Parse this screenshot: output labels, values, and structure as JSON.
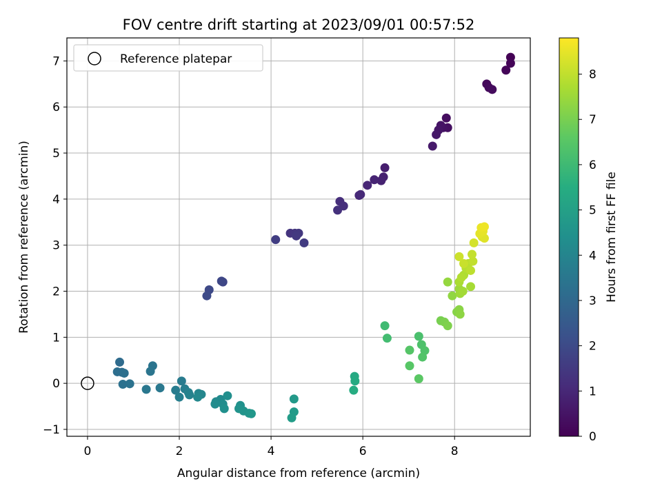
{
  "chart_data": {
    "type": "scatter",
    "title": "FOV centre drift starting at 2023/09/01 00:57:52",
    "xlabel": "Angular distance from reference (arcmin)",
    "ylabel": "Rotation from reference (arcmin)",
    "xlim": [
      -0.45,
      9.65
    ],
    "ylim": [
      -1.15,
      7.5
    ],
    "xticks": [
      0,
      2,
      4,
      6,
      8
    ],
    "yticks": [
      -1,
      0,
      1,
      2,
      3,
      4,
      5,
      6,
      7
    ],
    "grid": true,
    "colormap": "viridis",
    "colorbar": {
      "label": "Hours from first FF file",
      "range": [
        0,
        8.8
      ],
      "ticks": [
        0,
        1,
        2,
        3,
        4,
        5,
        6,
        7,
        8
      ]
    },
    "legend": {
      "position": "top-left",
      "entries": [
        "Reference platepar"
      ]
    },
    "reference_point": {
      "x": 0,
      "y": 0
    },
    "series": [
      {
        "points": [
          [
            9.22,
            7.08,
            0.03
          ],
          [
            9.22,
            6.95,
            0.08
          ],
          [
            9.12,
            6.8,
            0.12
          ],
          [
            8.7,
            6.5,
            0.17
          ],
          [
            8.75,
            6.42,
            0.22
          ],
          [
            8.82,
            6.38,
            0.27
          ],
          [
            7.82,
            5.76,
            0.33
          ],
          [
            7.85,
            5.55,
            0.38
          ],
          [
            7.75,
            5.55,
            0.43
          ],
          [
            7.7,
            5.6,
            0.48
          ],
          [
            7.65,
            5.5,
            0.53
          ],
          [
            7.6,
            5.4,
            0.58
          ],
          [
            7.52,
            5.15,
            0.63
          ],
          [
            6.48,
            4.68,
            0.75
          ],
          [
            6.45,
            4.48,
            0.8
          ],
          [
            6.4,
            4.4,
            0.85
          ],
          [
            6.25,
            4.42,
            0.9
          ],
          [
            6.1,
            4.3,
            0.95
          ],
          [
            5.92,
            4.08,
            1.0
          ],
          [
            5.95,
            4.1,
            1.05
          ],
          [
            5.5,
            3.95,
            1.15
          ],
          [
            5.58,
            3.85,
            1.2
          ],
          [
            5.45,
            3.76,
            1.25
          ],
          [
            4.42,
            3.26,
            1.35
          ],
          [
            4.52,
            3.26,
            1.4
          ],
          [
            4.6,
            3.26,
            1.45
          ],
          [
            4.55,
            3.2,
            1.5
          ],
          [
            4.72,
            3.05,
            1.55
          ],
          [
            4.1,
            3.12,
            1.62
          ],
          [
            2.95,
            2.2,
            1.85
          ],
          [
            2.92,
            2.22,
            1.9
          ],
          [
            2.65,
            2.03,
            1.95
          ],
          [
            2.6,
            1.9,
            2.0
          ],
          [
            0.7,
            0.46,
            3.1
          ],
          [
            0.75,
            0.24,
            3.15
          ],
          [
            0.65,
            0.25,
            3.2
          ],
          [
            0.8,
            0.22,
            3.25
          ],
          [
            0.77,
            -0.02,
            3.3
          ],
          [
            0.92,
            -0.01,
            3.35
          ],
          [
            1.42,
            0.38,
            3.4
          ],
          [
            1.37,
            0.26,
            3.45
          ],
          [
            1.28,
            -0.13,
            3.5
          ],
          [
            1.58,
            -0.1,
            3.55
          ],
          [
            2.05,
            0.05,
            3.65
          ],
          [
            1.92,
            -0.15,
            3.7
          ],
          [
            2.12,
            -0.12,
            3.75
          ],
          [
            2.0,
            -0.3,
            3.8
          ],
          [
            2.2,
            -0.2,
            3.85
          ],
          [
            2.22,
            -0.25,
            3.9
          ],
          [
            2.42,
            -0.22,
            4.0
          ],
          [
            2.48,
            -0.24,
            4.05
          ],
          [
            2.4,
            -0.3,
            4.1
          ],
          [
            2.8,
            -0.4,
            4.15
          ],
          [
            2.9,
            -0.35,
            4.2
          ],
          [
            2.78,
            -0.45,
            4.25
          ],
          [
            2.95,
            -0.45,
            4.3
          ],
          [
            3.05,
            -0.27,
            4.35
          ],
          [
            2.98,
            -0.55,
            4.4
          ],
          [
            3.33,
            -0.48,
            4.45
          ],
          [
            3.3,
            -0.55,
            4.5
          ],
          [
            3.4,
            -0.6,
            4.55
          ],
          [
            3.52,
            -0.65,
            4.6
          ],
          [
            3.57,
            -0.66,
            4.65
          ],
          [
            4.5,
            -0.34,
            4.75
          ],
          [
            4.5,
            -0.62,
            4.8
          ],
          [
            4.45,
            -0.75,
            4.85
          ],
          [
            5.82,
            0.15,
            5.35
          ],
          [
            5.83,
            0.05,
            5.4
          ],
          [
            5.8,
            -0.15,
            5.45
          ],
          [
            6.48,
            1.25,
            6.05
          ],
          [
            6.53,
            0.98,
            6.1
          ],
          [
            7.22,
            1.02,
            6.25
          ],
          [
            7.28,
            0.84,
            6.3
          ],
          [
            7.35,
            0.71,
            6.35
          ],
          [
            7.3,
            0.57,
            6.4
          ],
          [
            7.02,
            0.72,
            6.45
          ],
          [
            7.02,
            0.38,
            6.5
          ],
          [
            7.22,
            0.1,
            6.55
          ],
          [
            7.7,
            1.36,
            7.0
          ],
          [
            7.78,
            1.33,
            7.05
          ],
          [
            7.85,
            1.25,
            7.1
          ],
          [
            8.05,
            1.55,
            7.2
          ],
          [
            8.1,
            1.6,
            7.25
          ],
          [
            8.12,
            1.5,
            7.3
          ],
          [
            7.95,
            1.9,
            7.35
          ],
          [
            7.85,
            2.2,
            7.4
          ],
          [
            8.1,
            2.05,
            7.5
          ],
          [
            8.12,
            1.95,
            7.55
          ],
          [
            8.18,
            2.0,
            7.6
          ],
          [
            8.35,
            2.1,
            7.65
          ],
          [
            8.1,
            2.2,
            7.7
          ],
          [
            8.2,
            2.35,
            7.75
          ],
          [
            8.15,
            2.3,
            7.8
          ],
          [
            8.25,
            2.5,
            7.85
          ],
          [
            8.3,
            2.6,
            7.9
          ],
          [
            8.35,
            2.45,
            7.95
          ],
          [
            8.4,
            2.65,
            8.0
          ],
          [
            8.38,
            2.8,
            8.05
          ],
          [
            8.2,
            2.6,
            8.1
          ],
          [
            8.1,
            2.75,
            8.15
          ],
          [
            8.42,
            3.05,
            8.25
          ],
          [
            8.6,
            3.18,
            8.35
          ],
          [
            8.65,
            3.15,
            8.4
          ],
          [
            8.55,
            3.25,
            8.45
          ],
          [
            8.62,
            3.3,
            8.5
          ],
          [
            8.58,
            3.38,
            8.55
          ],
          [
            8.65,
            3.4,
            8.6
          ]
        ]
      }
    ]
  }
}
